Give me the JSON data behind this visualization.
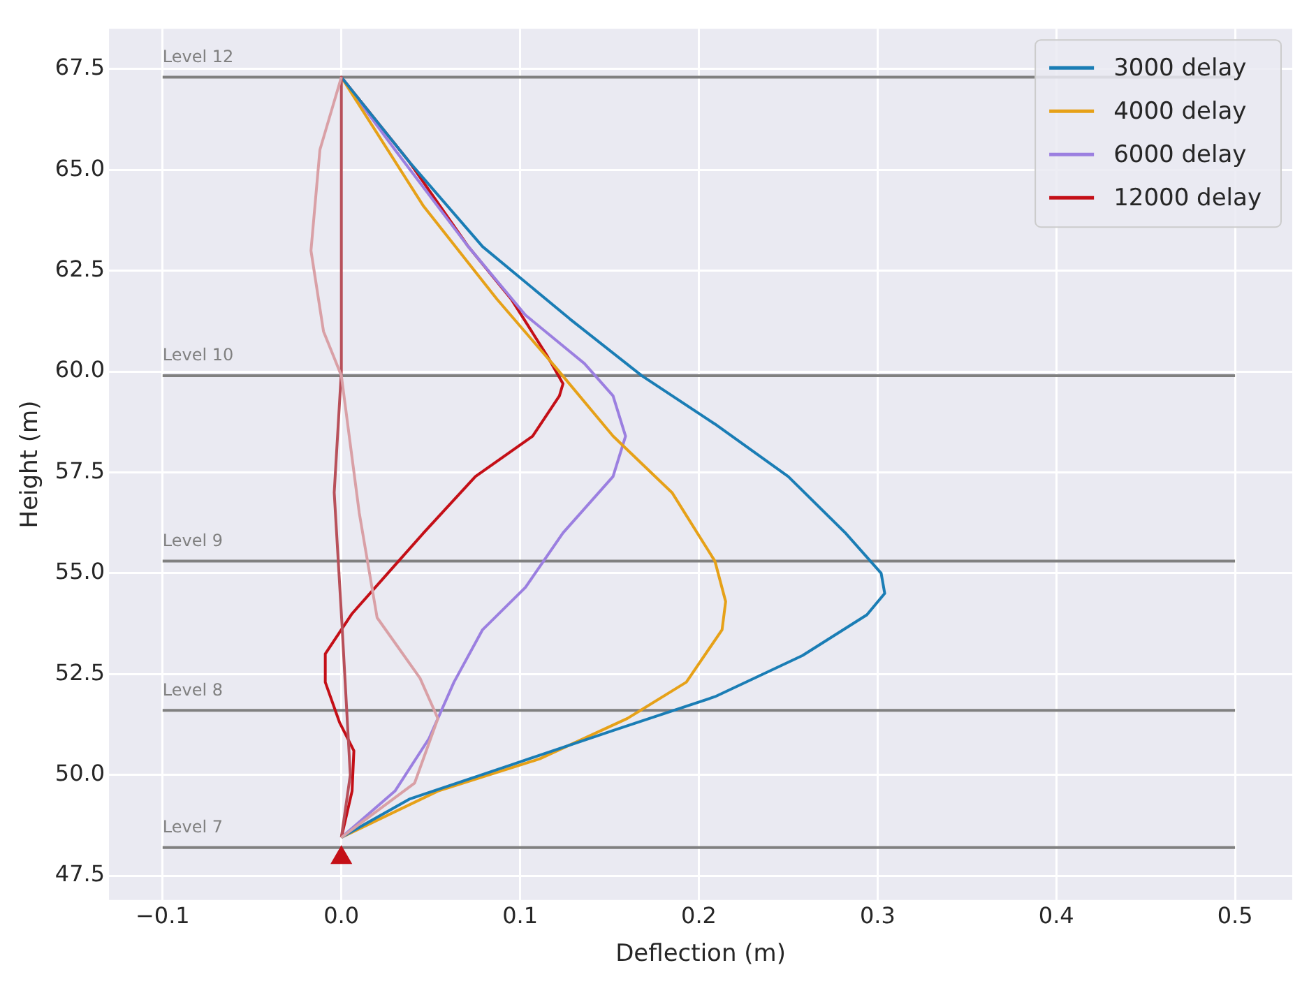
{
  "chart_data": {
    "type": "line",
    "xlabel": "Deflection (m)",
    "ylabel": "Height (m)",
    "xlim": [
      -0.13,
      0.532
    ],
    "xticks": [
      {
        "value": -0.1,
        "label": "−0.1"
      },
      {
        "value": 0,
        "label": "0.0"
      },
      0.1,
      0.2,
      0.3,
      0.4,
      0.5
    ],
    "ylim": [
      46.9,
      68.5
    ],
    "yticks": [
      {
        "value": 47.5,
        "label": "47.5"
      },
      {
        "value": 50,
        "label": "50.0"
      },
      {
        "value": 52.5,
        "label": "52.5"
      },
      {
        "value": 55,
        "label": "55.0"
      },
      {
        "value": 57.5,
        "label": "57.5"
      },
      {
        "value": 60,
        "label": "60.0"
      },
      {
        "value": 62.5,
        "label": "62.5"
      },
      {
        "value": 65,
        "label": "65.0"
      },
      {
        "value": 67.5,
        "label": "67.5"
      }
    ],
    "grid": true,
    "legend": "top right",
    "marker": "none",
    "line_style": "solid",
    "ref_lines": [
      {
        "axis": "y",
        "value": 67.3,
        "label": "Level 12",
        "color": "#808080"
      },
      {
        "axis": "y",
        "value": 59.9,
        "label": "Level 10",
        "color": "#808080"
      },
      {
        "axis": "y",
        "value": 55.3,
        "label": "Level 9",
        "color": "#808080"
      },
      {
        "axis": "y",
        "value": 51.6,
        "label": "Level 8",
        "color": "#808080"
      },
      {
        "axis": "y",
        "value": 48.2,
        "label": "Level 7",
        "color": "#808080"
      }
    ],
    "series": [
      {
        "color": "#d9a0a6",
        "x": [
          0,
          -0.012,
          -0.017,
          -0.01,
          0,
          0.01,
          0.02,
          0.044,
          0.054,
          0.041,
          0
        ],
        "values": [
          67.3,
          65.5,
          63.0,
          61.0,
          59.9,
          56.5,
          53.9,
          52.4,
          51.4,
          49.8,
          48.45
        ]
      },
      {
        "color": "#b8505a",
        "x": [
          0,
          0,
          -0.004,
          0,
          0.005,
          0
        ],
        "values": [
          67.3,
          60.0,
          57.0,
          54.0,
          50.0,
          48.45
        ]
      },
      {
        "name": "3000 delay",
        "color": "#1a7db5",
        "x": [
          0,
          0.038,
          0.095,
          0.152,
          0.209,
          0.258,
          0.294,
          0.304,
          0.302,
          0.282,
          0.25,
          0.209,
          0.168,
          0.128,
          0.079,
          0.038,
          0
        ],
        "values": [
          48.45,
          49.4,
          50.25,
          51.1,
          51.94,
          52.96,
          53.97,
          54.5,
          55.0,
          56.0,
          57.4,
          58.7,
          59.9,
          61.3,
          63.1,
          65.2,
          67.3
        ]
      },
      {
        "name": "4000 delay",
        "color": "#e6a118",
        "x": [
          0,
          0.054,
          0.111,
          0.16,
          0.193,
          0.213,
          0.215,
          0.209,
          0.185,
          0.152,
          0.12,
          0.087,
          0.046,
          0
        ],
        "values": [
          48.45,
          49.6,
          50.4,
          51.4,
          52.3,
          53.6,
          54.3,
          55.3,
          57.0,
          58.4,
          60.1,
          61.8,
          64.1,
          67.3
        ]
      },
      {
        "name": "6000 delay",
        "color": "#9b7fe0",
        "x": [
          0,
          0.03,
          0.049,
          0.063,
          0.079,
          0.103,
          0.124,
          0.152,
          0.159,
          0.152,
          0.136,
          0.103,
          0.071,
          0.03,
          0
        ],
        "values": [
          48.45,
          49.6,
          50.9,
          52.3,
          53.6,
          54.65,
          56.0,
          57.4,
          58.4,
          59.4,
          60.2,
          61.4,
          63.1,
          65.5,
          67.3
        ]
      },
      {
        "name": "12000 delay",
        "color": "#c40f17",
        "x": [
          0,
          0.006,
          0.007,
          -0.001,
          -0.009,
          -0.009,
          0.006,
          0.026,
          0.046,
          0.075,
          0.107,
          0.122,
          0.124,
          0.115,
          0.095,
          0.071,
          0.038,
          0
        ],
        "values": [
          48.45,
          49.6,
          50.6,
          51.3,
          52.3,
          53.0,
          54.0,
          55.0,
          56.0,
          57.4,
          58.4,
          59.4,
          59.7,
          60.4,
          61.8,
          63.1,
          65.2,
          67.3
        ]
      },
      {
        "type": "scatter",
        "marker": "triangle",
        "color": "#c40f17",
        "x": [
          0
        ],
        "values": [
          47.95
        ]
      }
    ]
  }
}
